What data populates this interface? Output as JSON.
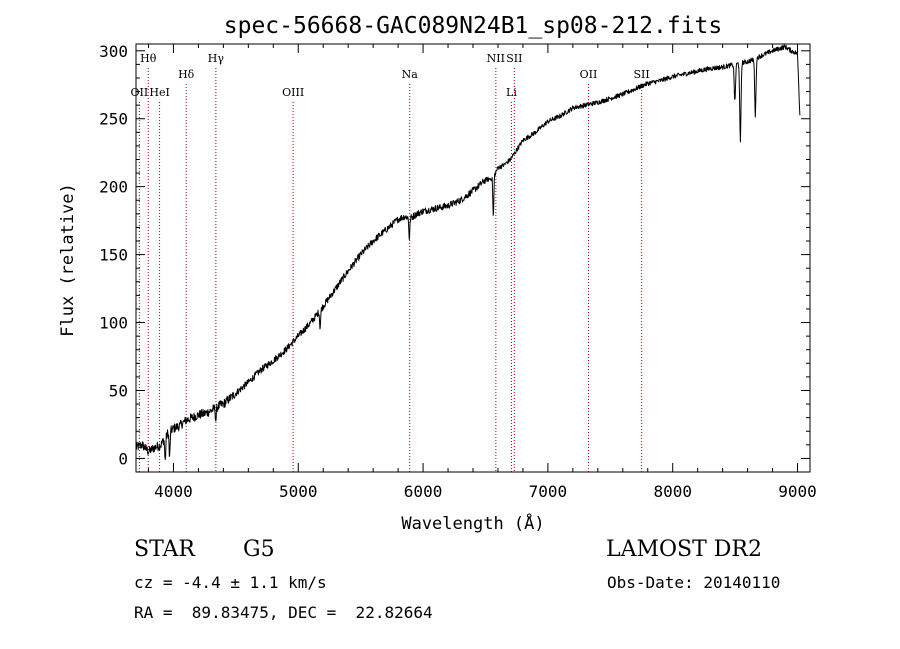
{
  "chart_data": {
    "type": "line",
    "title": "spec-56668-GAC089N24B1_sp08-212.fits",
    "xlabel": "Wavelength (Å)",
    "ylabel": "Flux (relative)",
    "xlim": [
      3700,
      9100
    ],
    "ylim": [
      -10,
      305
    ],
    "xticks": [
      4000,
      5000,
      6000,
      7000,
      8000,
      9000
    ],
    "yticks": [
      0,
      50,
      100,
      150,
      200,
      250,
      300
    ],
    "grid": false,
    "line_color": "#000000",
    "marker_color": "#b00000",
    "spectral_lines": [
      {
        "label": "OII",
        "x": 3727,
        "row": "lower"
      },
      {
        "label": "Hθ",
        "x": 3798,
        "row": "upper"
      },
      {
        "label": "HeI",
        "x": 3889,
        "row": "lower"
      },
      {
        "label": "Hδ",
        "x": 4102,
        "row": "middle"
      },
      {
        "label": "Hγ",
        "x": 4340,
        "row": "upper"
      },
      {
        "label": "OIII",
        "x": 4959,
        "row": "lower"
      },
      {
        "label": "Na",
        "x": 5893,
        "row": "middle"
      },
      {
        "label": "NII",
        "x": 6583,
        "row": "upper"
      },
      {
        "label": "Li",
        "x": 6708,
        "row": "lower"
      },
      {
        "label": "SII",
        "x": 6731,
        "row": "upper"
      },
      {
        "label": "OII",
        "x": 7325,
        "row": "middle"
      },
      {
        "label": "SII",
        "x": 7751,
        "row": "middle"
      }
    ],
    "series": [
      {
        "x": [
          3700,
          3750,
          3800,
          3850,
          3900,
          3950,
          4000,
          4050,
          4100,
          4150,
          4200,
          4250,
          4300,
          4350,
          4400,
          4500,
          4600,
          4700,
          4800,
          4900,
          5000,
          5100,
          5200,
          5300,
          5400,
          5500,
          5600,
          5700,
          5800,
          5850,
          5900,
          5950,
          6000,
          6100,
          6200,
          6300,
          6400,
          6500,
          6550,
          6580,
          6600,
          6650,
          6700,
          6800,
          6900,
          7000,
          7100,
          7200,
          7300,
          7400,
          7500,
          7600,
          7700,
          7800,
          7900,
          8000,
          8100,
          8200,
          8300,
          8400,
          8450,
          8500,
          8540,
          8600,
          8660,
          8700,
          8800,
          8900,
          8950,
          9000,
          9020
        ],
        "y": [
          8,
          10,
          5,
          8,
          10,
          18,
          22,
          24,
          28,
          30,
          32,
          33,
          35,
          38,
          40,
          48,
          56,
          65,
          72,
          80,
          90,
          100,
          112,
          125,
          138,
          150,
          160,
          168,
          176,
          178,
          177,
          180,
          182,
          184,
          186,
          190,
          197,
          205,
          206,
          210,
          214,
          216,
          220,
          234,
          240,
          248,
          252,
          258,
          260,
          262,
          265,
          268,
          272,
          276,
          278,
          281,
          283,
          285,
          287,
          288,
          289,
          290,
          291,
          292,
          294,
          296,
          300,
          303,
          300,
          298,
          250
        ],
        "absorption": [
          {
            "x": 3934,
            "y": -2
          },
          {
            "x": 3969,
            "y": 0
          },
          {
            "x": 4340,
            "y": 28
          },
          {
            "x": 5175,
            "y": 96
          },
          {
            "x": 5890,
            "y": 162
          },
          {
            "x": 6563,
            "y": 178
          },
          {
            "x": 8498,
            "y": 262
          },
          {
            "x": 8542,
            "y": 232
          },
          {
            "x": 8662,
            "y": 252
          }
        ]
      }
    ]
  },
  "info": {
    "obj_type": "STAR",
    "subclass": "G5",
    "survey": "LAMOST DR2",
    "cz_line": "cz = -4.4 ± 1.1 km/s",
    "obsdate_line": "Obs-Date: 20140110",
    "radec_line": "RA =  89.83475, DEC =  22.82664"
  }
}
